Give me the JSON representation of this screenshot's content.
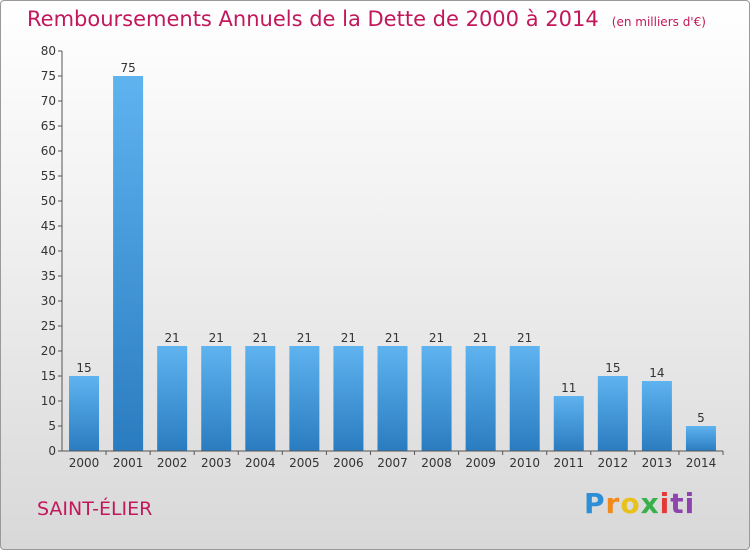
{
  "header": {
    "title": "Remboursements Annuels de la Dette de 2000 à 2014",
    "subtitle": "(en milliers d'€)"
  },
  "footer": {
    "commune": "SAINT-ÉLIER",
    "logo_letters": [
      "P",
      "r",
      "o",
      "x",
      "i",
      "ti"
    ]
  },
  "colors": {
    "accent": "#c2185b",
    "bar_top": "#5fb3ef",
    "bar_bottom": "#2a7cc0"
  },
  "chart_data": {
    "type": "bar",
    "categories": [
      "2000",
      "2001",
      "2002",
      "2003",
      "2004",
      "2005",
      "2006",
      "2007",
      "2008",
      "2009",
      "2010",
      "2011",
      "2012",
      "2013",
      "2014"
    ],
    "values": [
      15,
      75,
      21,
      21,
      21,
      21,
      21,
      21,
      21,
      21,
      21,
      11,
      15,
      14,
      5
    ],
    "title": "Remboursements Annuels de la Dette de 2000 à 2014",
    "subtitle": "(en milliers d'€)",
    "ylim": [
      0,
      80
    ],
    "yticks": [
      0,
      5,
      10,
      15,
      20,
      25,
      30,
      35,
      40,
      45,
      50,
      55,
      60,
      65,
      70,
      75,
      80
    ],
    "grid": false,
    "data_labels": true
  }
}
